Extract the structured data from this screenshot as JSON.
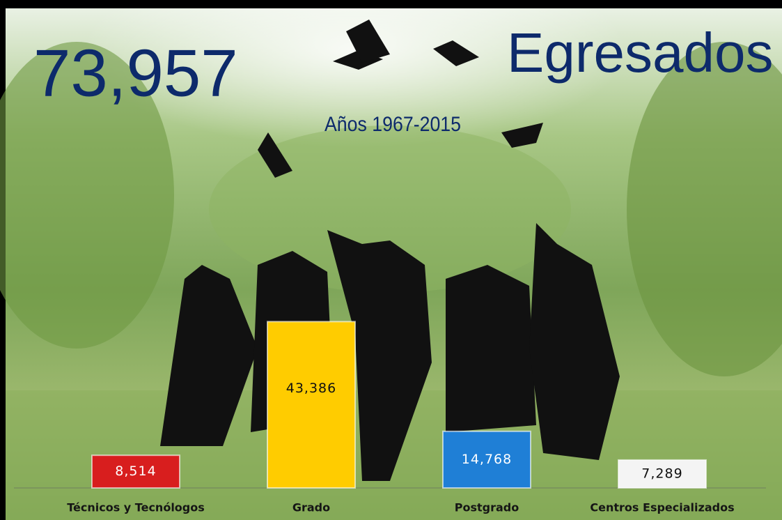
{
  "chart_data": {
    "type": "bar",
    "title": "73,957",
    "subtitle": "Egresados",
    "annotation": "Años 1967-2015",
    "categories": [
      "Técnicos y Tecnólogos",
      "Grado",
      "Postgrado",
      "Centros Especializados"
    ],
    "values": [
      8514,
      43386,
      14768,
      7289
    ],
    "value_labels": [
      "8,514",
      "43,386",
      "14,768",
      "7,289"
    ],
    "colors": [
      "#d81e1e",
      "#ffcc00",
      "#1f7fd6",
      "#f4f4f4"
    ],
    "ylim": [
      0,
      60000
    ]
  }
}
